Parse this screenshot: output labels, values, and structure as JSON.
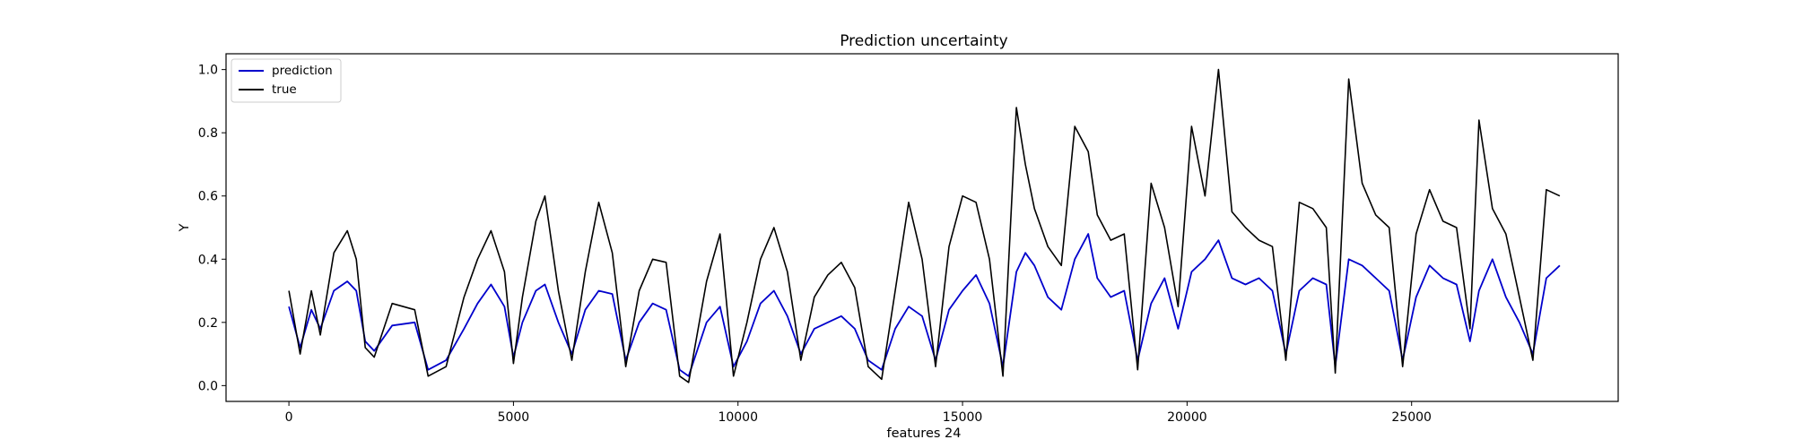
{
  "chart_data": {
    "type": "line",
    "title": "Prediction uncertainty",
    "xlabel": "features 24",
    "ylabel": "Y",
    "xlim": [
      -1400,
      29600
    ],
    "ylim": [
      -0.05,
      1.05
    ],
    "xticks": [
      0,
      5000,
      10000,
      15000,
      20000,
      25000
    ],
    "yticks": [
      0.0,
      0.2,
      0.4,
      0.6,
      0.8,
      1.0
    ],
    "xtick_labels": [
      "0",
      "5000",
      "10000",
      "15000",
      "20000",
      "25000"
    ],
    "ytick_labels": [
      "0.0",
      "0.2",
      "0.4",
      "0.6",
      "0.8",
      "1.0"
    ],
    "grid": false,
    "legend_position": "top-left",
    "series": [
      {
        "name": "prediction",
        "color": "#0000cc",
        "x": [
          0,
          250,
          500,
          700,
          1000,
          1300,
          1500,
          1700,
          1900,
          2300,
          2800,
          3100,
          3500,
          3900,
          4200,
          4500,
          4800,
          5000,
          5200,
          5500,
          5700,
          6000,
          6300,
          6600,
          6900,
          7200,
          7500,
          7800,
          8100,
          8400,
          8700,
          8900,
          9300,
          9600,
          9900,
          10200,
          10500,
          10800,
          11100,
          11400,
          11700,
          12000,
          12300,
          12600,
          12900,
          13200,
          13500,
          13800,
          14100,
          14400,
          14700,
          15000,
          15300,
          15600,
          15900,
          16200,
          16400,
          16600,
          16900,
          17200,
          17500,
          17800,
          18000,
          18300,
          18600,
          18900,
          19200,
          19500,
          19800,
          20100,
          20400,
          20700,
          21000,
          21300,
          21600,
          21900,
          22200,
          22500,
          22800,
          23100,
          23300,
          23600,
          23900,
          24200,
          24500,
          24800,
          25100,
          25400,
          25700,
          26000,
          26300,
          26500,
          26800,
          27100,
          27400,
          27700,
          28000,
          28300
        ],
        "y": [
          0.25,
          0.12,
          0.24,
          0.18,
          0.3,
          0.33,
          0.3,
          0.14,
          0.11,
          0.19,
          0.2,
          0.05,
          0.08,
          0.18,
          0.26,
          0.32,
          0.25,
          0.09,
          0.2,
          0.3,
          0.32,
          0.2,
          0.1,
          0.24,
          0.3,
          0.29,
          0.08,
          0.2,
          0.26,
          0.24,
          0.05,
          0.03,
          0.2,
          0.25,
          0.06,
          0.14,
          0.26,
          0.3,
          0.22,
          0.1,
          0.18,
          0.2,
          0.22,
          0.18,
          0.08,
          0.05,
          0.18,
          0.25,
          0.22,
          0.08,
          0.24,
          0.3,
          0.35,
          0.26,
          0.06,
          0.36,
          0.42,
          0.38,
          0.28,
          0.24,
          0.4,
          0.48,
          0.34,
          0.28,
          0.3,
          0.08,
          0.26,
          0.34,
          0.18,
          0.36,
          0.4,
          0.46,
          0.34,
          0.32,
          0.34,
          0.3,
          0.1,
          0.3,
          0.34,
          0.32,
          0.06,
          0.4,
          0.38,
          0.34,
          0.3,
          0.08,
          0.28,
          0.38,
          0.34,
          0.32,
          0.14,
          0.3,
          0.4,
          0.28,
          0.2,
          0.1,
          0.34,
          0.38
        ]
      },
      {
        "name": "true",
        "color": "#000000",
        "x": [
          0,
          250,
          500,
          700,
          1000,
          1300,
          1500,
          1700,
          1900,
          2300,
          2800,
          3100,
          3500,
          3900,
          4200,
          4500,
          4800,
          5000,
          5200,
          5500,
          5700,
          6000,
          6300,
          6600,
          6900,
          7200,
          7500,
          7800,
          8100,
          8400,
          8700,
          8900,
          9300,
          9600,
          9900,
          10200,
          10500,
          10800,
          11100,
          11400,
          11700,
          12000,
          12300,
          12600,
          12900,
          13200,
          13500,
          13800,
          14100,
          14400,
          14700,
          15000,
          15300,
          15600,
          15900,
          16200,
          16400,
          16600,
          16900,
          17200,
          17500,
          17800,
          18000,
          18300,
          18600,
          18900,
          19200,
          19500,
          19800,
          20100,
          20400,
          20700,
          21000,
          21300,
          21600,
          21900,
          22200,
          22500,
          22800,
          23100,
          23300,
          23600,
          23900,
          24200,
          24500,
          24800,
          25100,
          25400,
          25700,
          26000,
          26300,
          26500,
          26800,
          27100,
          27400,
          27700,
          28000,
          28300
        ],
        "y": [
          0.3,
          0.1,
          0.3,
          0.16,
          0.42,
          0.49,
          0.4,
          0.12,
          0.09,
          0.26,
          0.24,
          0.03,
          0.06,
          0.28,
          0.4,
          0.49,
          0.36,
          0.07,
          0.28,
          0.52,
          0.6,
          0.3,
          0.08,
          0.36,
          0.58,
          0.42,
          0.06,
          0.3,
          0.4,
          0.39,
          0.03,
          0.01,
          0.33,
          0.48,
          0.03,
          0.2,
          0.4,
          0.5,
          0.36,
          0.08,
          0.28,
          0.35,
          0.39,
          0.31,
          0.06,
          0.02,
          0.3,
          0.58,
          0.4,
          0.06,
          0.44,
          0.6,
          0.58,
          0.4,
          0.03,
          0.88,
          0.7,
          0.56,
          0.44,
          0.38,
          0.82,
          0.74,
          0.54,
          0.46,
          0.48,
          0.05,
          0.64,
          0.5,
          0.25,
          0.82,
          0.6,
          1.0,
          0.55,
          0.5,
          0.46,
          0.44,
          0.08,
          0.58,
          0.56,
          0.5,
          0.04,
          0.97,
          0.64,
          0.54,
          0.5,
          0.06,
          0.48,
          0.62,
          0.52,
          0.5,
          0.18,
          0.84,
          0.56,
          0.48,
          0.28,
          0.08,
          0.62,
          0.6
        ]
      }
    ]
  }
}
